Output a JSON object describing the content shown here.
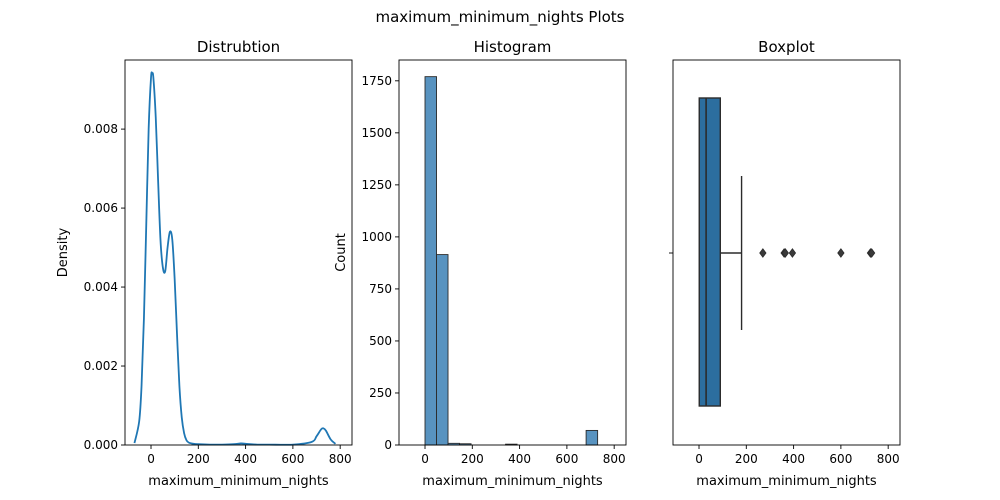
{
  "figure": {
    "title": "maximum_minimum_nights Plots",
    "colors": {
      "line": "#1f77b4",
      "hist_fill": "#5893c0",
      "box_fill": "#2c6e9f",
      "edge": "#2b2b2b"
    }
  },
  "chart_data": [
    {
      "type": "line",
      "title": "Distrubtion",
      "xlabel": "maximum_minimum_nights",
      "ylabel": "Density",
      "xlim": [
        -110,
        850
      ],
      "ylim": [
        0,
        0.00975
      ],
      "xticks": [
        0,
        200,
        400,
        600,
        800
      ],
      "xtick_labels": [
        "0",
        "200",
        "400",
        "600",
        "800"
      ],
      "yticks": [
        0,
        0.002,
        0.004,
        0.006,
        0.008
      ],
      "ytick_labels": [
        "0.000",
        "0.002",
        "0.004",
        "0.006",
        "0.008"
      ],
      "x": [
        -70,
        -50,
        -40,
        -30,
        -20,
        -10,
        0,
        5,
        10,
        20,
        30,
        40,
        50,
        60,
        70,
        80,
        90,
        100,
        110,
        120,
        130,
        140,
        150,
        160,
        180,
        200,
        250,
        300,
        350,
        380,
        400,
        450,
        500,
        600,
        680,
        700,
        720,
        730,
        740,
        760,
        780
      ],
      "y": [
        5e-05,
        0.0006,
        0.0015,
        0.0032,
        0.0056,
        0.008,
        0.0093,
        0.0094,
        0.0093,
        0.0083,
        0.0067,
        0.0052,
        0.0045,
        0.0044,
        0.005,
        0.0054,
        0.0052,
        0.0042,
        0.0028,
        0.0015,
        0.0007,
        0.0003,
        0.00012,
        6e-05,
        3e-05,
        2e-05,
        1e-05,
        1e-05,
        2e-05,
        4e-05,
        3e-05,
        1e-05,
        1e-05,
        1e-05,
        8e-05,
        0.00022,
        0.0004,
        0.00042,
        0.00036,
        0.00014,
        3e-05
      ]
    },
    {
      "type": "bar",
      "title": "Histogram",
      "xlabel": "maximum_minimum_nights",
      "ylabel": "Count",
      "xlim": [
        -110,
        850
      ],
      "ylim": [
        0,
        1850
      ],
      "xticks": [
        0,
        200,
        400,
        600,
        800
      ],
      "xtick_labels": [
        "0",
        "200",
        "400",
        "600",
        "800"
      ],
      "yticks": [
        0,
        250,
        500,
        750,
        1000,
        1250,
        1500,
        1750
      ],
      "ytick_labels": [
        "0",
        "250",
        "500",
        "750",
        "1000",
        "1250",
        "1500",
        "1750"
      ],
      "bin_edges": [
        0,
        48.7,
        97.3,
        146,
        194.7,
        243.3,
        292,
        340.7,
        389.3,
        438,
        486.7,
        535.3,
        584,
        632.7,
        681.3,
        730
      ],
      "values": [
        1770,
        915,
        8,
        6,
        0,
        0,
        0,
        4,
        0,
        0,
        0,
        0,
        0,
        0,
        70
      ]
    },
    {
      "type": "boxplot",
      "title": "Boxplot",
      "xlabel": "maximum_minimum_nights",
      "xlim": [
        -110,
        850
      ],
      "xticks": [
        0,
        200,
        400,
        600,
        800
      ],
      "xtick_labels": [
        "0",
        "200",
        "400",
        "600",
        "800"
      ],
      "q1": 1,
      "median": 30,
      "q3": 90,
      "whisker_low": 1,
      "whisker_high": 180,
      "outliers": [
        270,
        360,
        365,
        395,
        600,
        725,
        730
      ]
    }
  ]
}
